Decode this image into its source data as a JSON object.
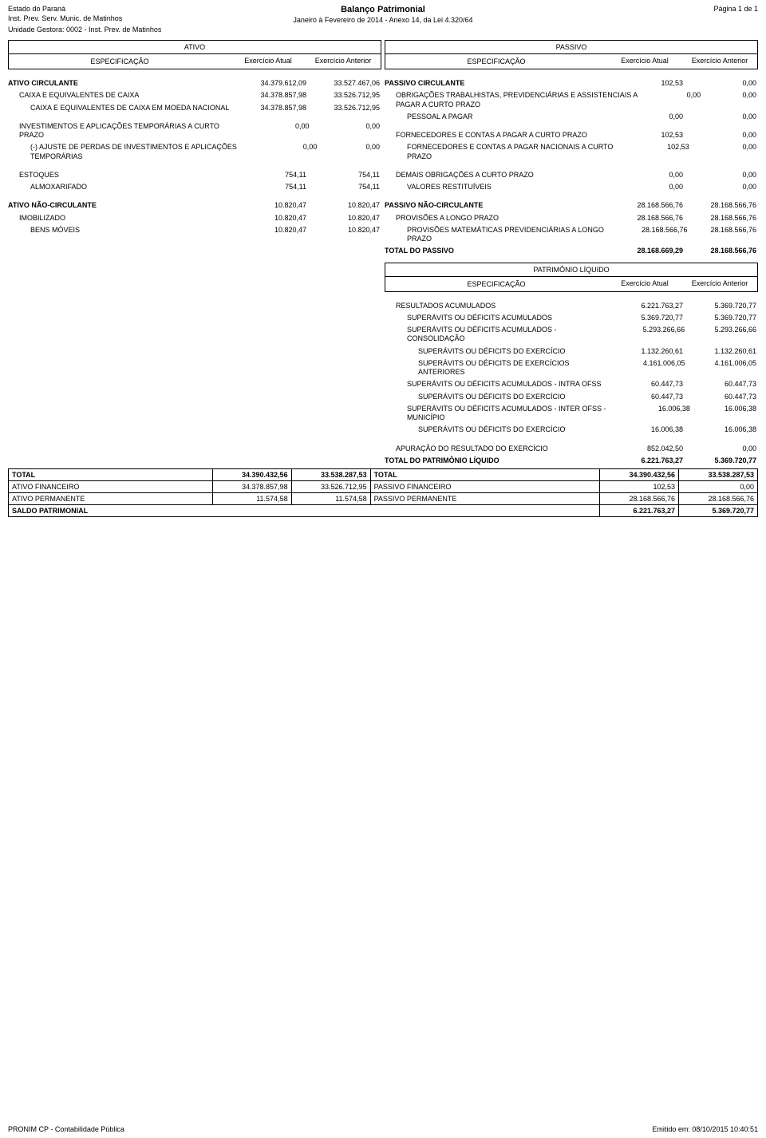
{
  "header": {
    "state": "Estado do Paraná",
    "inst": "Inst. Prev. Serv. Munic. de Matinhos",
    "unidade": "Unidade Gestora: 0002 - Inst. Prev. de Matinhos",
    "title": "Balanço Patrimonial",
    "period": "Janeiro à Fevereiro de 2014 - Anexo 14, da Lei 4.320/64",
    "page": "Página 1 de 1"
  },
  "section_heads": {
    "ativo": "ATIVO",
    "passivo": "PASSIVO",
    "patrimonio": "PATRIMÔNIO LÍQUIDO",
    "especificacao": "ESPECIFICAÇÃO",
    "ex_atual": "Exercício Atual",
    "ex_anterior": "Exercício Anterior"
  },
  "ativo": [
    {
      "lvl": 0,
      "label": "ATIVO CIRCULANTE",
      "a": "34.379.612,09",
      "p": "33.527.467,06"
    },
    {
      "lvl": 1,
      "label": "CAIXA E EQUIVALENTES DE CAIXA",
      "a": "34.378.857,98",
      "p": "33.526.712,95"
    },
    {
      "lvl": 2,
      "label": "CAIXA E EQUIVALENTES DE CAIXA EM MOEDA NACIONAL",
      "a": "34.378.857,98",
      "p": "33.526.712,95"
    },
    {
      "lvl": 1,
      "label": "INVESTIMENTOS E APLICAÇÕES TEMPORÁRIAS A CURTO PRAZO",
      "a": "0,00",
      "p": "0,00"
    },
    {
      "lvl": 2,
      "label": "(-) AJUSTE DE PERDAS DE INVESTIMENTOS E APLICAÇÕES TEMPORÁRIAS",
      "a": "0,00",
      "p": "0,00"
    },
    {
      "lvl": 1,
      "label": "ESTOQUES",
      "a": "754,11",
      "p": "754,11"
    },
    {
      "lvl": 2,
      "label": "ALMOXARIFADO",
      "a": "754,11",
      "p": "754,11"
    },
    {
      "lvl": 0,
      "label": "ATIVO NÃO-CIRCULANTE",
      "a": "10.820,47",
      "p": "10.820,47"
    },
    {
      "lvl": 1,
      "label": "IMOBILIZADO",
      "a": "10.820,47",
      "p": "10.820,47"
    },
    {
      "lvl": 2,
      "label": "BENS MÓVEIS",
      "a": "10.820,47",
      "p": "10.820,47"
    }
  ],
  "passivo": [
    {
      "lvl": 0,
      "label": "PASSIVO CIRCULANTE",
      "a": "102,53",
      "p": "0,00"
    },
    {
      "lvl": 1,
      "label": "OBRIGAÇÕES TRABALHISTAS, PREVIDENCIÁRIAS E ASSISTENCIAIS A PAGAR A CURTO PRAZO",
      "a": "0,00",
      "p": "0,00"
    },
    {
      "lvl": 2,
      "label": "PESSOAL A PAGAR",
      "a": "0,00",
      "p": "0,00"
    },
    {
      "lvl": 1,
      "label": "FORNECEDORES E CONTAS A PAGAR A CURTO PRAZO",
      "a": "102,53",
      "p": "0,00"
    },
    {
      "lvl": 2,
      "label": "FORNECEDORES E CONTAS A PAGAR NACIONAIS A CURTO PRAZO",
      "a": "102,53",
      "p": "0,00"
    },
    {
      "lvl": 1,
      "label": "DEMAIS OBRIGAÇÕES A CURTO PRAZO",
      "a": "0,00",
      "p": "0,00"
    },
    {
      "lvl": 2,
      "label": "VALORES RESTITUÍVEIS",
      "a": "0,00",
      "p": "0,00"
    },
    {
      "lvl": 0,
      "label": "PASSIVO NÃO-CIRCULANTE",
      "a": "28.168.566,76",
      "p": "28.168.566,76"
    },
    {
      "lvl": 1,
      "label": "PROVISÕES A LONGO PRAZO",
      "a": "28.168.566,76",
      "p": "28.168.566,76"
    },
    {
      "lvl": 2,
      "label": "PROVISÕES MATEMÁTICAS PREVIDENCIÁRIAS A LONGO PRAZO",
      "a": "28.168.566,76",
      "p": "28.168.566,76"
    }
  ],
  "passivo_total": {
    "label": "TOTAL DO PASSIVO",
    "a": "28.168.669,29",
    "p": "28.168.566,76"
  },
  "equity": [
    {
      "lvl": 1,
      "label": "RESULTADOS ACUMULADOS",
      "a": "6.221.763,27",
      "p": "5.369.720,77"
    },
    {
      "lvl": 2,
      "label": "SUPERÁVITS OU DÉFICITS ACUMULADOS",
      "a": "5.369.720,77",
      "p": "5.369.720,77"
    },
    {
      "lvl": 2,
      "label": "SUPERÁVITS OU DÉFICITS ACUMULADOS - CONSOLIDAÇÃO",
      "a": "5.293.266,66",
      "p": "5.293.266,66"
    },
    {
      "lvl": 3,
      "label": "SUPERÁVITS OU DÉFICITS DO EXERCÍCIO",
      "a": "1.132.260,61",
      "p": "1.132.260,61"
    },
    {
      "lvl": 3,
      "label": "SUPERÁVITS OU DÉFICITS DE EXERCÍCIOS ANTERIORES",
      "a": "4.161.006,05",
      "p": "4.161.006,05"
    },
    {
      "lvl": 2,
      "label": "SUPERÁVITS OU DÉFICITS ACUMULADOS - INTRA OFSS",
      "a": "60.447,73",
      "p": "60.447,73"
    },
    {
      "lvl": 3,
      "label": "SUPERÁVITS OU DÉFICITS DO EXERCÍCIO",
      "a": "60.447,73",
      "p": "60.447,73"
    },
    {
      "lvl": 2,
      "label": "SUPERÁVITS OU DÉFICITS ACUMULADOS - INTER OFSS - MUNICÍPIO",
      "a": "16.006,38",
      "p": "16.006,38"
    },
    {
      "lvl": 3,
      "label": "SUPERÁVITS OU DÉFICITS DO EXERCÍCIO",
      "a": "16.006,38",
      "p": "16.006,38"
    },
    {
      "lvl": 1,
      "label": "APURAÇÃO DO RESULTADO DO EXERCÍCIO",
      "a": "852.042,50",
      "p": "0,00"
    }
  ],
  "equity_total": {
    "label": "TOTAL DO PATRIMÔNIO LÍQUIDO",
    "a": "6.221.763,27",
    "p": "5.369.720,77"
  },
  "grand_totals": {
    "total_ativo": {
      "label": "TOTAL",
      "a": "34.390.432,56",
      "p": "33.538.287,53"
    },
    "ativo_fin": {
      "label": "ATIVO FINANCEIRO",
      "a": "34.378.857,98",
      "p": "33.526.712,95"
    },
    "ativo_perm": {
      "label": "ATIVO PERMANENTE",
      "a": "11.574,58",
      "p": "11.574,58"
    },
    "saldo": {
      "label": "SALDO PATRIMONIAL"
    },
    "total_pass": {
      "label": "TOTAL",
      "a": "34.390.432,56",
      "p": "33.538.287,53"
    },
    "pass_fin": {
      "label": "PASSIVO FINANCEIRO",
      "a": "102,53",
      "p": "0,00"
    },
    "pass_perm": {
      "label": "PASSIVO PERMANENTE",
      "a": "28.168.566,76",
      "p": "28.168.566,76"
    },
    "saldo_val": {
      "a": "6.221.763,27",
      "p": "5.369.720,77"
    }
  },
  "footer": {
    "left": "PRONIM CP - Contabilidade Pública",
    "right": "Emitido em: 08/10/2015 10:40:51"
  }
}
